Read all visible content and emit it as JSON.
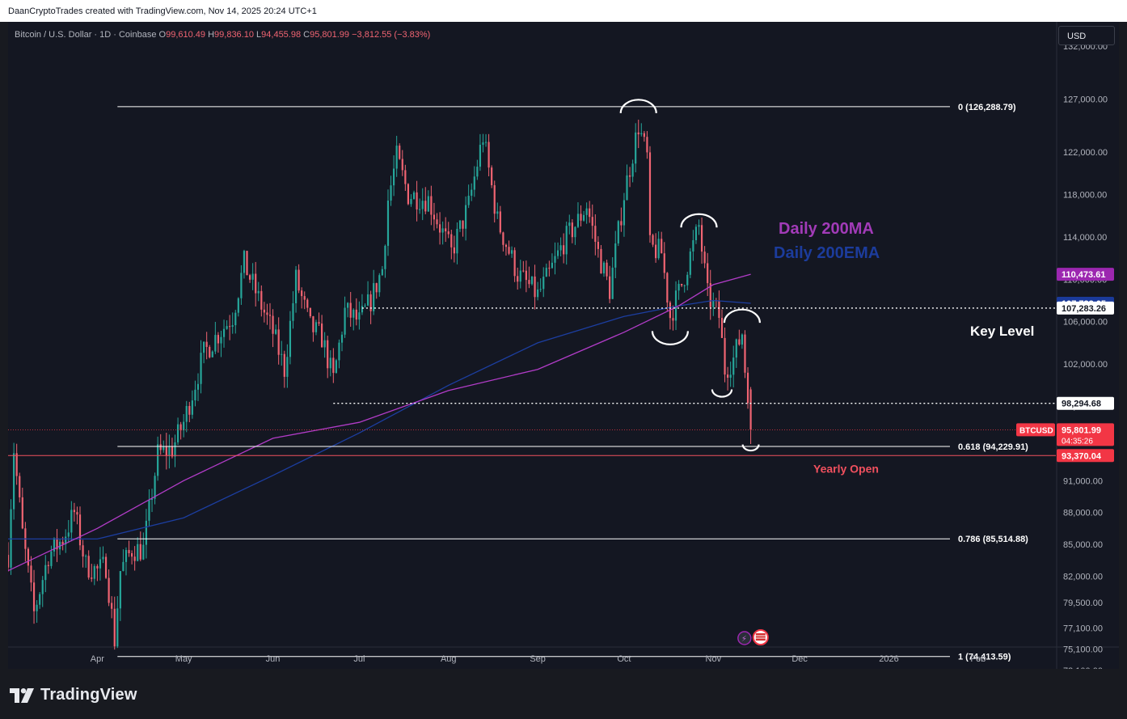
{
  "credit": "DaanCryptoTrades created with TradingView.com, Nov 14, 2025 20:24 UTC+1",
  "brand": "TradingView",
  "currency_button": "USD",
  "header": {
    "symbol": "Bitcoin / U.S. Dollar · 1D · Coinbase",
    "o_label": "O",
    "o_value": "99,610.49",
    "h_label": "H",
    "h_value": "99,836.10",
    "l_label": "L",
    "l_value": "94,455.98",
    "c_label": "C",
    "c_value": "95,801.99",
    "change": "−3,812.55 (−3.83%)"
  },
  "colors": {
    "up": "#26a69a",
    "down": "#f06472",
    "ma200": "#b23cc8",
    "ema200": "#1c3ea0",
    "yearly_open": "#f0505e",
    "price_badge": "#f23645"
  },
  "chart_data": {
    "type": "candlestick",
    "symbol": "BTCUSD",
    "interval": "1D",
    "exchange": "Coinbase",
    "x_ticks": [
      "Apr",
      "May",
      "Jun",
      "Jul",
      "Aug",
      "Sep",
      "Oct",
      "Nov",
      "Dec",
      "2026",
      "Feb"
    ],
    "y_ticks": [
      "132,000.00",
      "127,000.00",
      "122,000.00",
      "118,000.00",
      "114,000.00",
      "110,000.00",
      "106,000.00",
      "102,000.00",
      "98,000.00",
      "95,000.00",
      "91,000.00",
      "88,000.00",
      "85,000.00",
      "82,000.00",
      "79,500.00",
      "77,100.00",
      "75,100.00",
      "73,100.00"
    ],
    "y_tick_values": [
      132000,
      127000,
      122000,
      118000,
      114000,
      110000,
      106000,
      102000,
      98000,
      95000,
      91000,
      88000,
      85000,
      82000,
      79500,
      77100,
      75100,
      73100
    ],
    "price_path": [
      [
        "2025-03-01",
        84000
      ],
      [
        "2025-03-03",
        94000
      ],
      [
        "2025-03-06",
        86000
      ],
      [
        "2025-03-10",
        78500
      ],
      [
        "2025-03-15",
        84000
      ],
      [
        "2025-03-20",
        85500
      ],
      [
        "2025-03-24",
        88000
      ],
      [
        "2025-03-28",
        83000
      ],
      [
        "2025-04-01",
        82500
      ],
      [
        "2025-04-04",
        83000
      ],
      [
        "2025-04-07",
        76000
      ],
      [
        "2025-04-09",
        82500
      ],
      [
        "2025-04-13",
        84500
      ],
      [
        "2025-04-17",
        84500
      ],
      [
        "2025-04-22",
        93500
      ],
      [
        "2025-04-27",
        94000
      ],
      [
        "2025-05-01",
        96500
      ],
      [
        "2025-05-08",
        103000
      ],
      [
        "2025-05-12",
        104500
      ],
      [
        "2025-05-18",
        106500
      ],
      [
        "2025-05-22",
        111500
      ],
      [
        "2025-05-28",
        107500
      ],
      [
        "2025-06-01",
        105000
      ],
      [
        "2025-06-05",
        101500
      ],
      [
        "2025-06-09",
        110000
      ],
      [
        "2025-06-14",
        105500
      ],
      [
        "2025-06-18",
        104500
      ],
      [
        "2025-06-22",
        100500
      ],
      [
        "2025-06-26",
        107000
      ],
      [
        "2025-07-01",
        106000
      ],
      [
        "2025-07-05",
        108000
      ],
      [
        "2025-07-09",
        111000
      ],
      [
        "2025-07-11",
        117500
      ],
      [
        "2025-07-14",
        121500
      ],
      [
        "2025-07-18",
        118000
      ],
      [
        "2025-07-25",
        117500
      ],
      [
        "2025-08-02",
        112500
      ],
      [
        "2025-08-08",
        117000
      ],
      [
        "2025-08-13",
        123500
      ],
      [
        "2025-08-18",
        115500
      ],
      [
        "2025-08-25",
        110500
      ],
      [
        "2025-09-01",
        108500
      ],
      [
        "2025-09-05",
        110500
      ],
      [
        "2025-09-10",
        113500
      ],
      [
        "2025-09-15",
        115500
      ],
      [
        "2025-09-18",
        117000
      ],
      [
        "2025-09-22",
        112500
      ],
      [
        "2025-09-26",
        109000
      ],
      [
        "2025-10-01",
        118000
      ],
      [
        "2025-10-06",
        124500
      ],
      [
        "2025-10-09",
        121500
      ],
      [
        "2025-10-10",
        113000
      ],
      [
        "2025-10-14",
        112500
      ],
      [
        "2025-10-17",
        106500
      ],
      [
        "2025-10-21",
        109500
      ],
      [
        "2025-10-27",
        115000
      ],
      [
        "2025-10-30",
        108500
      ],
      [
        "2025-11-03",
        106500
      ],
      [
        "2025-11-05",
        101500
      ],
      [
        "2025-11-08",
        102500
      ],
      [
        "2025-11-11",
        105000
      ],
      [
        "2025-11-12",
        101500
      ],
      [
        "2025-11-13",
        99500
      ],
      [
        "2025-11-14",
        95801.99
      ]
    ],
    "ma200_path": [
      [
        "2025-03-01",
        82500
      ],
      [
        "2025-04-01",
        86500
      ],
      [
        "2025-05-01",
        91000
      ],
      [
        "2025-06-01",
        95000
      ],
      [
        "2025-07-01",
        96500
      ],
      [
        "2025-08-01",
        99500
      ],
      [
        "2025-09-01",
        101500
      ],
      [
        "2025-10-01",
        105000
      ],
      [
        "2025-10-20",
        107500
      ],
      [
        "2025-11-01",
        109500
      ],
      [
        "2025-11-14",
        110473.61
      ]
    ],
    "ema200_path": [
      [
        "2025-03-01",
        85500
      ],
      [
        "2025-04-01",
        85500
      ],
      [
        "2025-05-01",
        87500
      ],
      [
        "2025-06-01",
        91500
      ],
      [
        "2025-07-01",
        95500
      ],
      [
        "2025-08-01",
        100000
      ],
      [
        "2025-09-01",
        104000
      ],
      [
        "2025-10-01",
        106500
      ],
      [
        "2025-10-20",
        107500
      ],
      [
        "2025-11-01",
        108000
      ],
      [
        "2025-11-14",
        107733.05
      ]
    ],
    "fib_levels": [
      {
        "label": "0 (126,288.79)",
        "value": 126288.79
      },
      {
        "label": "0.618 (94,229.91)",
        "value": 94229.91
      },
      {
        "label": "0.786 (85,514.88)",
        "value": 85514.88
      },
      {
        "label": "1 (74,413.59)",
        "value": 74413.59
      }
    ],
    "dotted_levels": [
      {
        "value": 107283.26,
        "start": "2025-07-02"
      },
      {
        "value": 98294.68,
        "start": "2025-06-22"
      }
    ],
    "yearly_open": {
      "value": 93370.04,
      "label": "Yearly Open"
    },
    "annotations": {
      "ma_label": "Daily 200MA",
      "ema_label": "Daily 200EMA",
      "key_level_label": "Key Level"
    },
    "price_labels": {
      "ma200": "110,473.61",
      "ema200": "107,733.05",
      "resistance": "107,283.26",
      "key_level": "98,294.68",
      "last_price": "95,801.99",
      "countdown": "04:35:26",
      "symbol_tag": "BTCUSD",
      "yearly_open": "93,370.04"
    },
    "swing_markers": [
      {
        "date": "2025-10-06",
        "value": 126288.79,
        "shape": "top"
      },
      {
        "date": "2025-10-17",
        "value": 104500,
        "shape": "bottom"
      },
      {
        "date": "2025-10-27",
        "value": 115500,
        "shape": "top"
      },
      {
        "date": "2025-11-04",
        "value": 99000,
        "shape": "bottom"
      },
      {
        "date": "2025-11-11",
        "value": 106500,
        "shape": "top"
      },
      {
        "date": "2025-11-14",
        "value": 93800,
        "shape": "bottom"
      }
    ]
  }
}
